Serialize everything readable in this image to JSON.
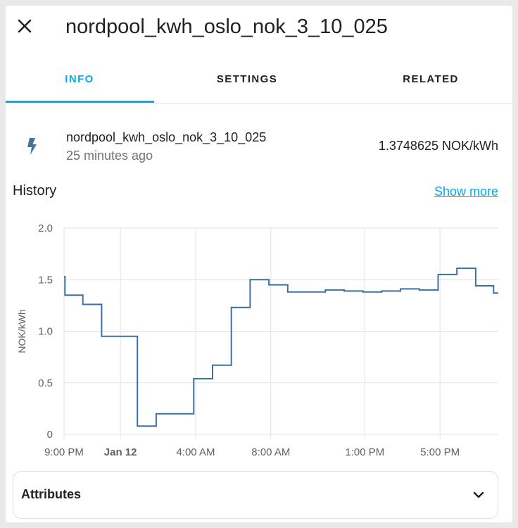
{
  "dialog": {
    "title": "nordpool_kwh_oslo_nok_3_10_025",
    "close_icon": "close-icon"
  },
  "tabs": [
    {
      "label": "INFO",
      "active": true
    },
    {
      "label": "SETTINGS",
      "active": false
    },
    {
      "label": "RELATED",
      "active": false
    }
  ],
  "entity": {
    "icon": "lightning-bolt-icon",
    "name": "nordpool_kwh_oslo_nok_3_10_025",
    "last_changed": "25 minutes ago",
    "state": "1.3748625 NOK/kWh"
  },
  "history": {
    "title": "History",
    "show_more": "Show more"
  },
  "chart_data": {
    "type": "line",
    "step": true,
    "ylabel": "NOK/kWh",
    "xlabel": "",
    "ylim": [
      0,
      2.0
    ],
    "yticks": [
      "2.0",
      "1.5",
      "1.0",
      "0.5",
      "0"
    ],
    "xticks": [
      {
        "label": "9:00 PM",
        "hour": 0,
        "bold": false
      },
      {
        "label": "Jan 12",
        "hour": 3,
        "bold": true
      },
      {
        "label": "4:00 AM",
        "hour": 7,
        "bold": false
      },
      {
        "label": "8:00 AM",
        "hour": 11,
        "bold": false
      },
      {
        "label": "1:00 PM",
        "hour": 16,
        "bold": false
      },
      {
        "label": "5:00 PM",
        "hour": 20,
        "bold": false
      }
    ],
    "xlim_hours": [
      0,
      23.1
    ],
    "grid": true,
    "color": "#3f6fa1",
    "series": [
      {
        "values": [
          [
            0,
            1.53
          ],
          [
            0.05,
            1.35
          ],
          [
            1.0,
            1.26
          ],
          [
            2.0,
            0.95
          ],
          [
            3.9,
            0.08
          ],
          [
            4.9,
            0.2
          ],
          [
            6.9,
            0.54
          ],
          [
            7.9,
            0.67
          ],
          [
            8.9,
            1.23
          ],
          [
            9.9,
            1.5
          ],
          [
            10.9,
            1.45
          ],
          [
            11.9,
            1.38
          ],
          [
            13.9,
            1.4
          ],
          [
            14.9,
            1.39
          ],
          [
            15.9,
            1.38
          ],
          [
            16.9,
            1.39
          ],
          [
            17.9,
            1.41
          ],
          [
            18.9,
            1.4
          ],
          [
            19.9,
            1.55
          ],
          [
            20.9,
            1.61
          ],
          [
            21.9,
            1.44
          ],
          [
            22.85,
            1.37
          ],
          [
            23.1,
            1.37
          ]
        ]
      }
    ]
  },
  "attributes": {
    "label": "Attributes",
    "chevron_icon": "chevron-down-icon"
  },
  "colors": {
    "accent": "#03a9f4",
    "line": "#3f6fa1",
    "icon": "#44739e"
  }
}
